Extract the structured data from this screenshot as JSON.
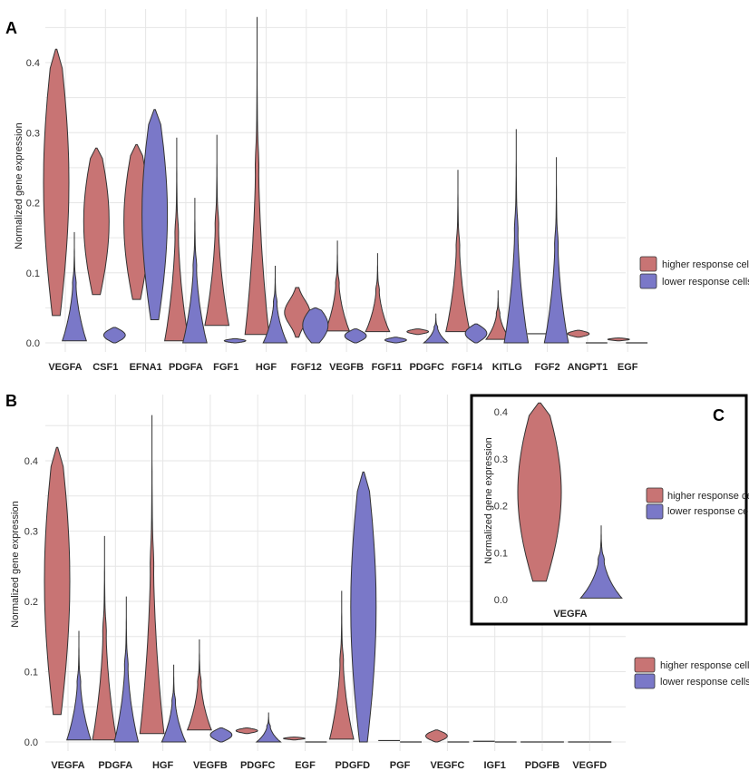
{
  "colors": {
    "higher": "#c87474",
    "lower": "#7a78c8",
    "outline": "#333333",
    "grid": "#e6e6e6"
  },
  "chart_data": [
    {
      "panel": "A",
      "type": "violin",
      "ylabel": "Normalized gene expression",
      "ylim": [
        0,
        0.46
      ],
      "yticks": [
        0.0,
        0.1,
        0.2,
        0.3,
        0.4
      ],
      "ytick_labels": [
        "0.0",
        "0.1",
        "0.2",
        "0.3",
        "0.4"
      ],
      "grid": true,
      "legend": {
        "placement": "right",
        "entries": [
          "higher response cells",
          "lower response cells"
        ]
      },
      "categories": [
        "VEGFA",
        "CSF1",
        "EFNA1",
        "PDGFA",
        "FGF1",
        "HGF",
        "FGF12",
        "VEGFB",
        "FGF11",
        "PDGFC",
        "FGF14",
        "KITLG",
        "FGF2",
        "ANGPT1",
        "EGF"
      ],
      "series": [
        {
          "name": "higher response cells",
          "violins": [
            {
              "cat": "VEGFA",
              "min": 0.039,
              "max": 0.419,
              "shape": "wide"
            },
            {
              "cat": "CSF1",
              "min": 0.069,
              "max": 0.278,
              "shape": "wide"
            },
            {
              "cat": "EFNA1",
              "min": 0.062,
              "max": 0.283,
              "shape": "wide"
            },
            {
              "cat": "PDGFA",
              "min": 0.003,
              "max": 0.293,
              "shape": "bottom"
            },
            {
              "cat": "FGF1",
              "min": 0.025,
              "max": 0.297,
              "shape": "bottom"
            },
            {
              "cat": "HGF",
              "min": 0.012,
              "max": 0.465,
              "shape": "bottom"
            },
            {
              "cat": "FGF12",
              "min": 0.008,
              "max": 0.079,
              "shape": "mid"
            },
            {
              "cat": "VEGFB",
              "min": 0.017,
              "max": 0.146,
              "shape": "bottom"
            },
            {
              "cat": "FGF11",
              "min": 0.016,
              "max": 0.128,
              "shape": "bottom"
            },
            {
              "cat": "PDGFC",
              "min": 0.012,
              "max": 0.02,
              "shape": "flat"
            },
            {
              "cat": "FGF14",
              "min": 0.016,
              "max": 0.247,
              "shape": "bottom"
            },
            {
              "cat": "KITLG",
              "min": 0.005,
              "max": 0.075,
              "shape": "bottom"
            },
            {
              "cat": "FGF2",
              "min": 0.013,
              "max": 0.016,
              "shape": "flat"
            },
            {
              "cat": "ANGPT1",
              "min": 0.008,
              "max": 0.018,
              "shape": "flat"
            },
            {
              "cat": "EGF",
              "min": 0.003,
              "max": 0.007,
              "shape": "flat"
            }
          ]
        },
        {
          "name": "lower response cells",
          "violins": [
            {
              "cat": "VEGFA",
              "min": 0.003,
              "max": 0.158,
              "shape": "bottom"
            },
            {
              "cat": "CSF1",
              "min": 0.0,
              "max": 0.022,
              "shape": "flat"
            },
            {
              "cat": "EFNA1",
              "min": 0.033,
              "max": 0.333,
              "shape": "wide"
            },
            {
              "cat": "PDGFA",
              "min": 0.0,
              "max": 0.207,
              "shape": "bottom"
            },
            {
              "cat": "FGF1",
              "min": 0.0,
              "max": 0.006,
              "shape": "flat"
            },
            {
              "cat": "HGF",
              "min": 0.0,
              "max": 0.11,
              "shape": "bottom"
            },
            {
              "cat": "FGF12",
              "min": 0.0,
              "max": 0.05,
              "shape": "wide"
            },
            {
              "cat": "VEGFB",
              "min": 0.0,
              "max": 0.02,
              "shape": "flat"
            },
            {
              "cat": "FGF11",
              "min": 0.0,
              "max": 0.008,
              "shape": "flat"
            },
            {
              "cat": "PDGFC",
              "min": 0.0,
              "max": 0.042,
              "shape": "bottom"
            },
            {
              "cat": "FGF14",
              "min": 0.0,
              "max": 0.027,
              "shape": "flat"
            },
            {
              "cat": "KITLG",
              "min": 0.0,
              "max": 0.305,
              "shape": "bottom"
            },
            {
              "cat": "FGF2",
              "min": 0.0,
              "max": 0.265,
              "shape": "bottom"
            },
            {
              "cat": "ANGPT1",
              "min": 0.0,
              "max": 0.001,
              "shape": "flat"
            },
            {
              "cat": "EGF",
              "min": 0.0,
              "max": 0.001,
              "shape": "flat"
            }
          ]
        }
      ]
    },
    {
      "panel": "B",
      "type": "violin",
      "ylabel": "Normalized gene expression",
      "ylim": [
        0,
        0.46
      ],
      "yticks": [
        0.0,
        0.1,
        0.2,
        0.3,
        0.4
      ],
      "ytick_labels": [
        "0.0",
        "0.1",
        "0.2",
        "0.3",
        "0.4"
      ],
      "grid": true,
      "legend": {
        "placement": "right",
        "entries": [
          "higher response cells",
          "lower response cells"
        ]
      },
      "categories": [
        "VEGFA",
        "PDGFA",
        "HGF",
        "VEGFB",
        "PDGFC",
        "EGF",
        "PDGFD",
        "PGF",
        "VEGFC",
        "IGF1",
        "PDGFB",
        "VEGFD"
      ],
      "series": [
        {
          "name": "higher response cells",
          "violins": [
            {
              "cat": "VEGFA",
              "min": 0.039,
              "max": 0.419,
              "shape": "wide"
            },
            {
              "cat": "PDGFA",
              "min": 0.003,
              "max": 0.293,
              "shape": "bottom"
            },
            {
              "cat": "HGF",
              "min": 0.012,
              "max": 0.465,
              "shape": "bottom"
            },
            {
              "cat": "VEGFB",
              "min": 0.017,
              "max": 0.146,
              "shape": "bottom"
            },
            {
              "cat": "PDGFC",
              "min": 0.012,
              "max": 0.02,
              "shape": "flat"
            },
            {
              "cat": "EGF",
              "min": 0.003,
              "max": 0.007,
              "shape": "flat"
            },
            {
              "cat": "PDGFD",
              "min": 0.004,
              "max": 0.215,
              "shape": "bottom"
            },
            {
              "cat": "PGF",
              "min": 0.002,
              "max": 0.004,
              "shape": "flat"
            },
            {
              "cat": "VEGFC",
              "min": 0.0,
              "max": 0.017,
              "shape": "flat"
            },
            {
              "cat": "IGF1",
              "min": 0.001,
              "max": 0.003,
              "shape": "flat"
            },
            {
              "cat": "PDGFB",
              "min": 0.0,
              "max": 0.001,
              "shape": "flat"
            },
            {
              "cat": "VEGFD",
              "min": 0.0,
              "max": 0.001,
              "shape": "flat"
            }
          ]
        },
        {
          "name": "lower response cells",
          "violins": [
            {
              "cat": "VEGFA",
              "min": 0.003,
              "max": 0.158,
              "shape": "bottom"
            },
            {
              "cat": "PDGFA",
              "min": 0.0,
              "max": 0.207,
              "shape": "bottom"
            },
            {
              "cat": "HGF",
              "min": 0.0,
              "max": 0.11,
              "shape": "bottom"
            },
            {
              "cat": "VEGFB",
              "min": 0.0,
              "max": 0.02,
              "shape": "flat"
            },
            {
              "cat": "PDGFC",
              "min": 0.0,
              "max": 0.042,
              "shape": "bottom"
            },
            {
              "cat": "EGF",
              "min": 0.0,
              "max": 0.001,
              "shape": "flat"
            },
            {
              "cat": "PDGFD",
              "min": 0.0,
              "max": 0.384,
              "shape": "wide"
            },
            {
              "cat": "PGF",
              "min": 0.0,
              "max": 0.001,
              "shape": "flat"
            },
            {
              "cat": "VEGFC",
              "min": 0.0,
              "max": 0.001,
              "shape": "flat"
            },
            {
              "cat": "IGF1",
              "min": 0.0,
              "max": 0.003,
              "shape": "flat"
            },
            {
              "cat": "PDGFB",
              "min": 0.0,
              "max": 0.001,
              "shape": "flat"
            },
            {
              "cat": "VEGFD",
              "min": 0.0,
              "max": 0.001,
              "shape": "flat"
            }
          ]
        }
      ]
    },
    {
      "panel": "C",
      "type": "violin",
      "ylabel": "Normalized gene expression",
      "ylim": [
        0,
        0.42
      ],
      "yticks": [
        0.0,
        0.1,
        0.2,
        0.3,
        0.4
      ],
      "ytick_labels": [
        "0.0",
        "0.1",
        "0.2",
        "0.3",
        "0.4"
      ],
      "grid": false,
      "legend": {
        "placement": "right",
        "entries": [
          "higher response cells",
          "lower response cells"
        ]
      },
      "categories": [
        "VEGFA"
      ],
      "series": [
        {
          "name": "higher response cells",
          "violins": [
            {
              "cat": "VEGFA",
              "min": 0.039,
              "max": 0.419,
              "shape": "wide"
            }
          ]
        },
        {
          "name": "lower response cells",
          "violins": [
            {
              "cat": "VEGFA",
              "min": 0.003,
              "max": 0.158,
              "shape": "bottom"
            }
          ]
        }
      ]
    }
  ]
}
